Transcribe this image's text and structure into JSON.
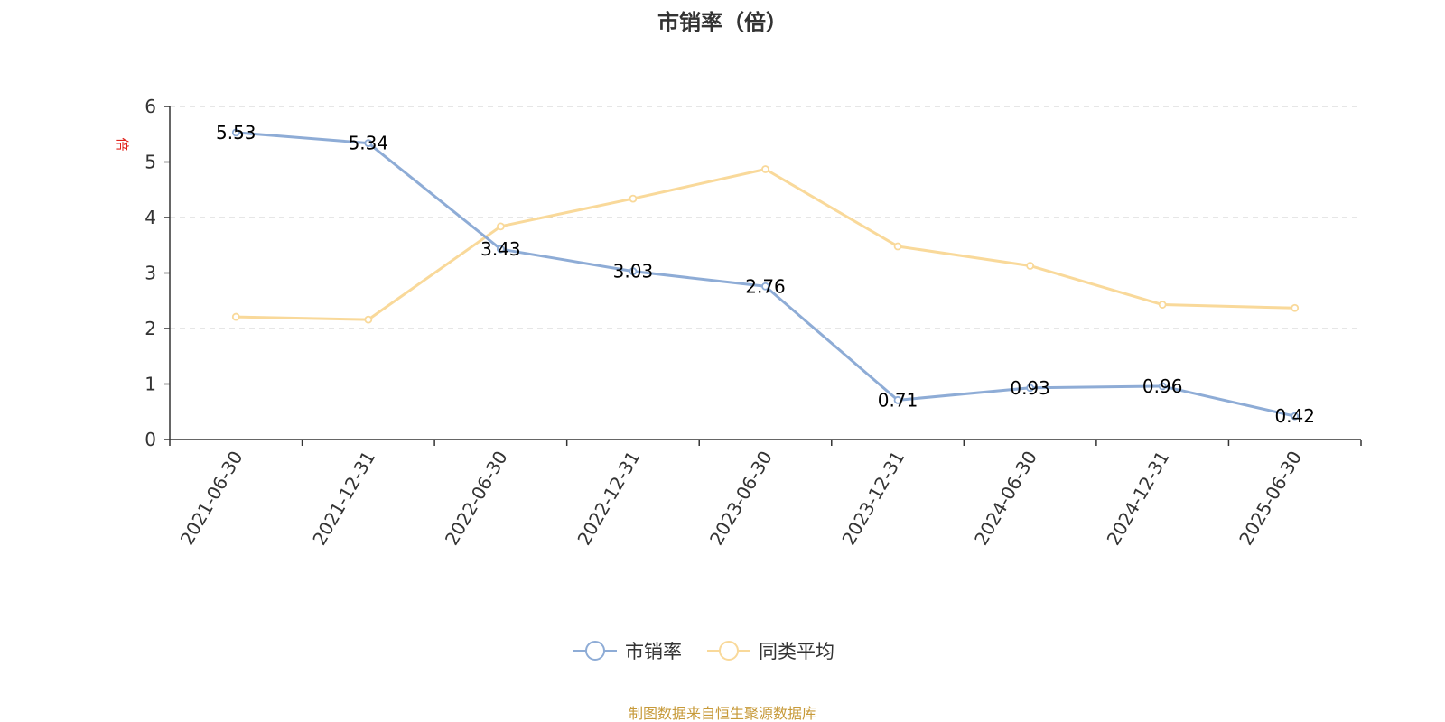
{
  "chart_data": {
    "type": "line",
    "title": "市销率（倍）",
    "unit_label": "倍",
    "categories": [
      "2021-06-30",
      "2021-12-31",
      "2022-06-30",
      "2022-12-31",
      "2023-06-30",
      "2023-12-31",
      "2024-06-30",
      "2024-12-31",
      "2025-06-30"
    ],
    "series": [
      {
        "name": "市销率",
        "color": "#8eacd6",
        "values": [
          5.53,
          5.34,
          3.43,
          3.03,
          2.76,
          0.71,
          0.93,
          0.96,
          0.42
        ],
        "labels": [
          "5.53",
          "5.34",
          "3.43",
          "3.03",
          "2.76",
          "0.71",
          "0.93",
          "0.96",
          "0.42"
        ]
      },
      {
        "name": "同类平均",
        "color": "#f9d99a",
        "values": [
          2.21,
          2.16,
          3.84,
          4.34,
          4.87,
          3.48,
          3.13,
          2.43,
          2.37
        ]
      }
    ],
    "ylim": [
      0,
      6
    ],
    "yticks": [
      0,
      1,
      2,
      3,
      4,
      5,
      6
    ],
    "grid": true,
    "legend": "bottom-center"
  },
  "source_text": "制图数据来自恒生聚源数据库"
}
